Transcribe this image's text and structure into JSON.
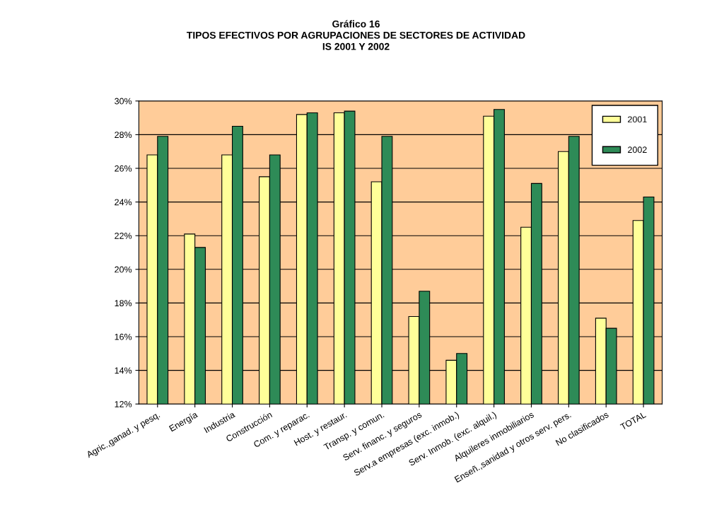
{
  "chart_data": {
    "type": "bar",
    "title": "Gráfico 16\nTIPOS EFECTIVOS POR AGRUPACIONES DE SECTORES DE ACTIVIDAD\nIS 2001 Y 2002",
    "categories": [
      "Agric.,ganad. y pesq.",
      "Energía",
      "Industria",
      "Construcción",
      "Com. y reparac.",
      "Host. y restaur.",
      "Transp. y comun.",
      "Serv. financ. y seguros",
      "Serv.a empresas (exc. inmob.)",
      "Serv. Inmob. (exc. alquil.)",
      "Alquileres inmobiliarios",
      "Enseñ.,sanidad y otros serv. pers.",
      "No clasificados",
      "TOTAL"
    ],
    "series": [
      {
        "name": "2001",
        "color": "#ffff99",
        "values": [
          26.8,
          22.1,
          26.8,
          25.5,
          29.2,
          29.3,
          25.2,
          17.2,
          14.6,
          29.1,
          22.5,
          27.0,
          17.1,
          22.9
        ]
      },
      {
        "name": "2002",
        "color": "#2e8b57",
        "values": [
          27.9,
          21.3,
          28.5,
          26.8,
          29.3,
          29.4,
          27.9,
          18.7,
          15.0,
          29.5,
          25.1,
          27.9,
          16.5,
          24.3
        ]
      }
    ],
    "ylim": [
      12,
      30
    ],
    "yticks": [
      {
        "value": 12,
        "label": "12%"
      },
      {
        "value": 14,
        "label": "14%"
      },
      {
        "value": 16,
        "label": "16%"
      },
      {
        "value": 18,
        "label": "18%"
      },
      {
        "value": 20,
        "label": "20%"
      },
      {
        "value": 22,
        "label": "22%"
      },
      {
        "value": 24,
        "label": "24%"
      },
      {
        "value": 26,
        "label": "26%"
      },
      {
        "value": 28,
        "label": "28%"
      },
      {
        "value": 30,
        "label": "30%"
      }
    ],
    "grid": "y",
    "legend": "top right"
  }
}
